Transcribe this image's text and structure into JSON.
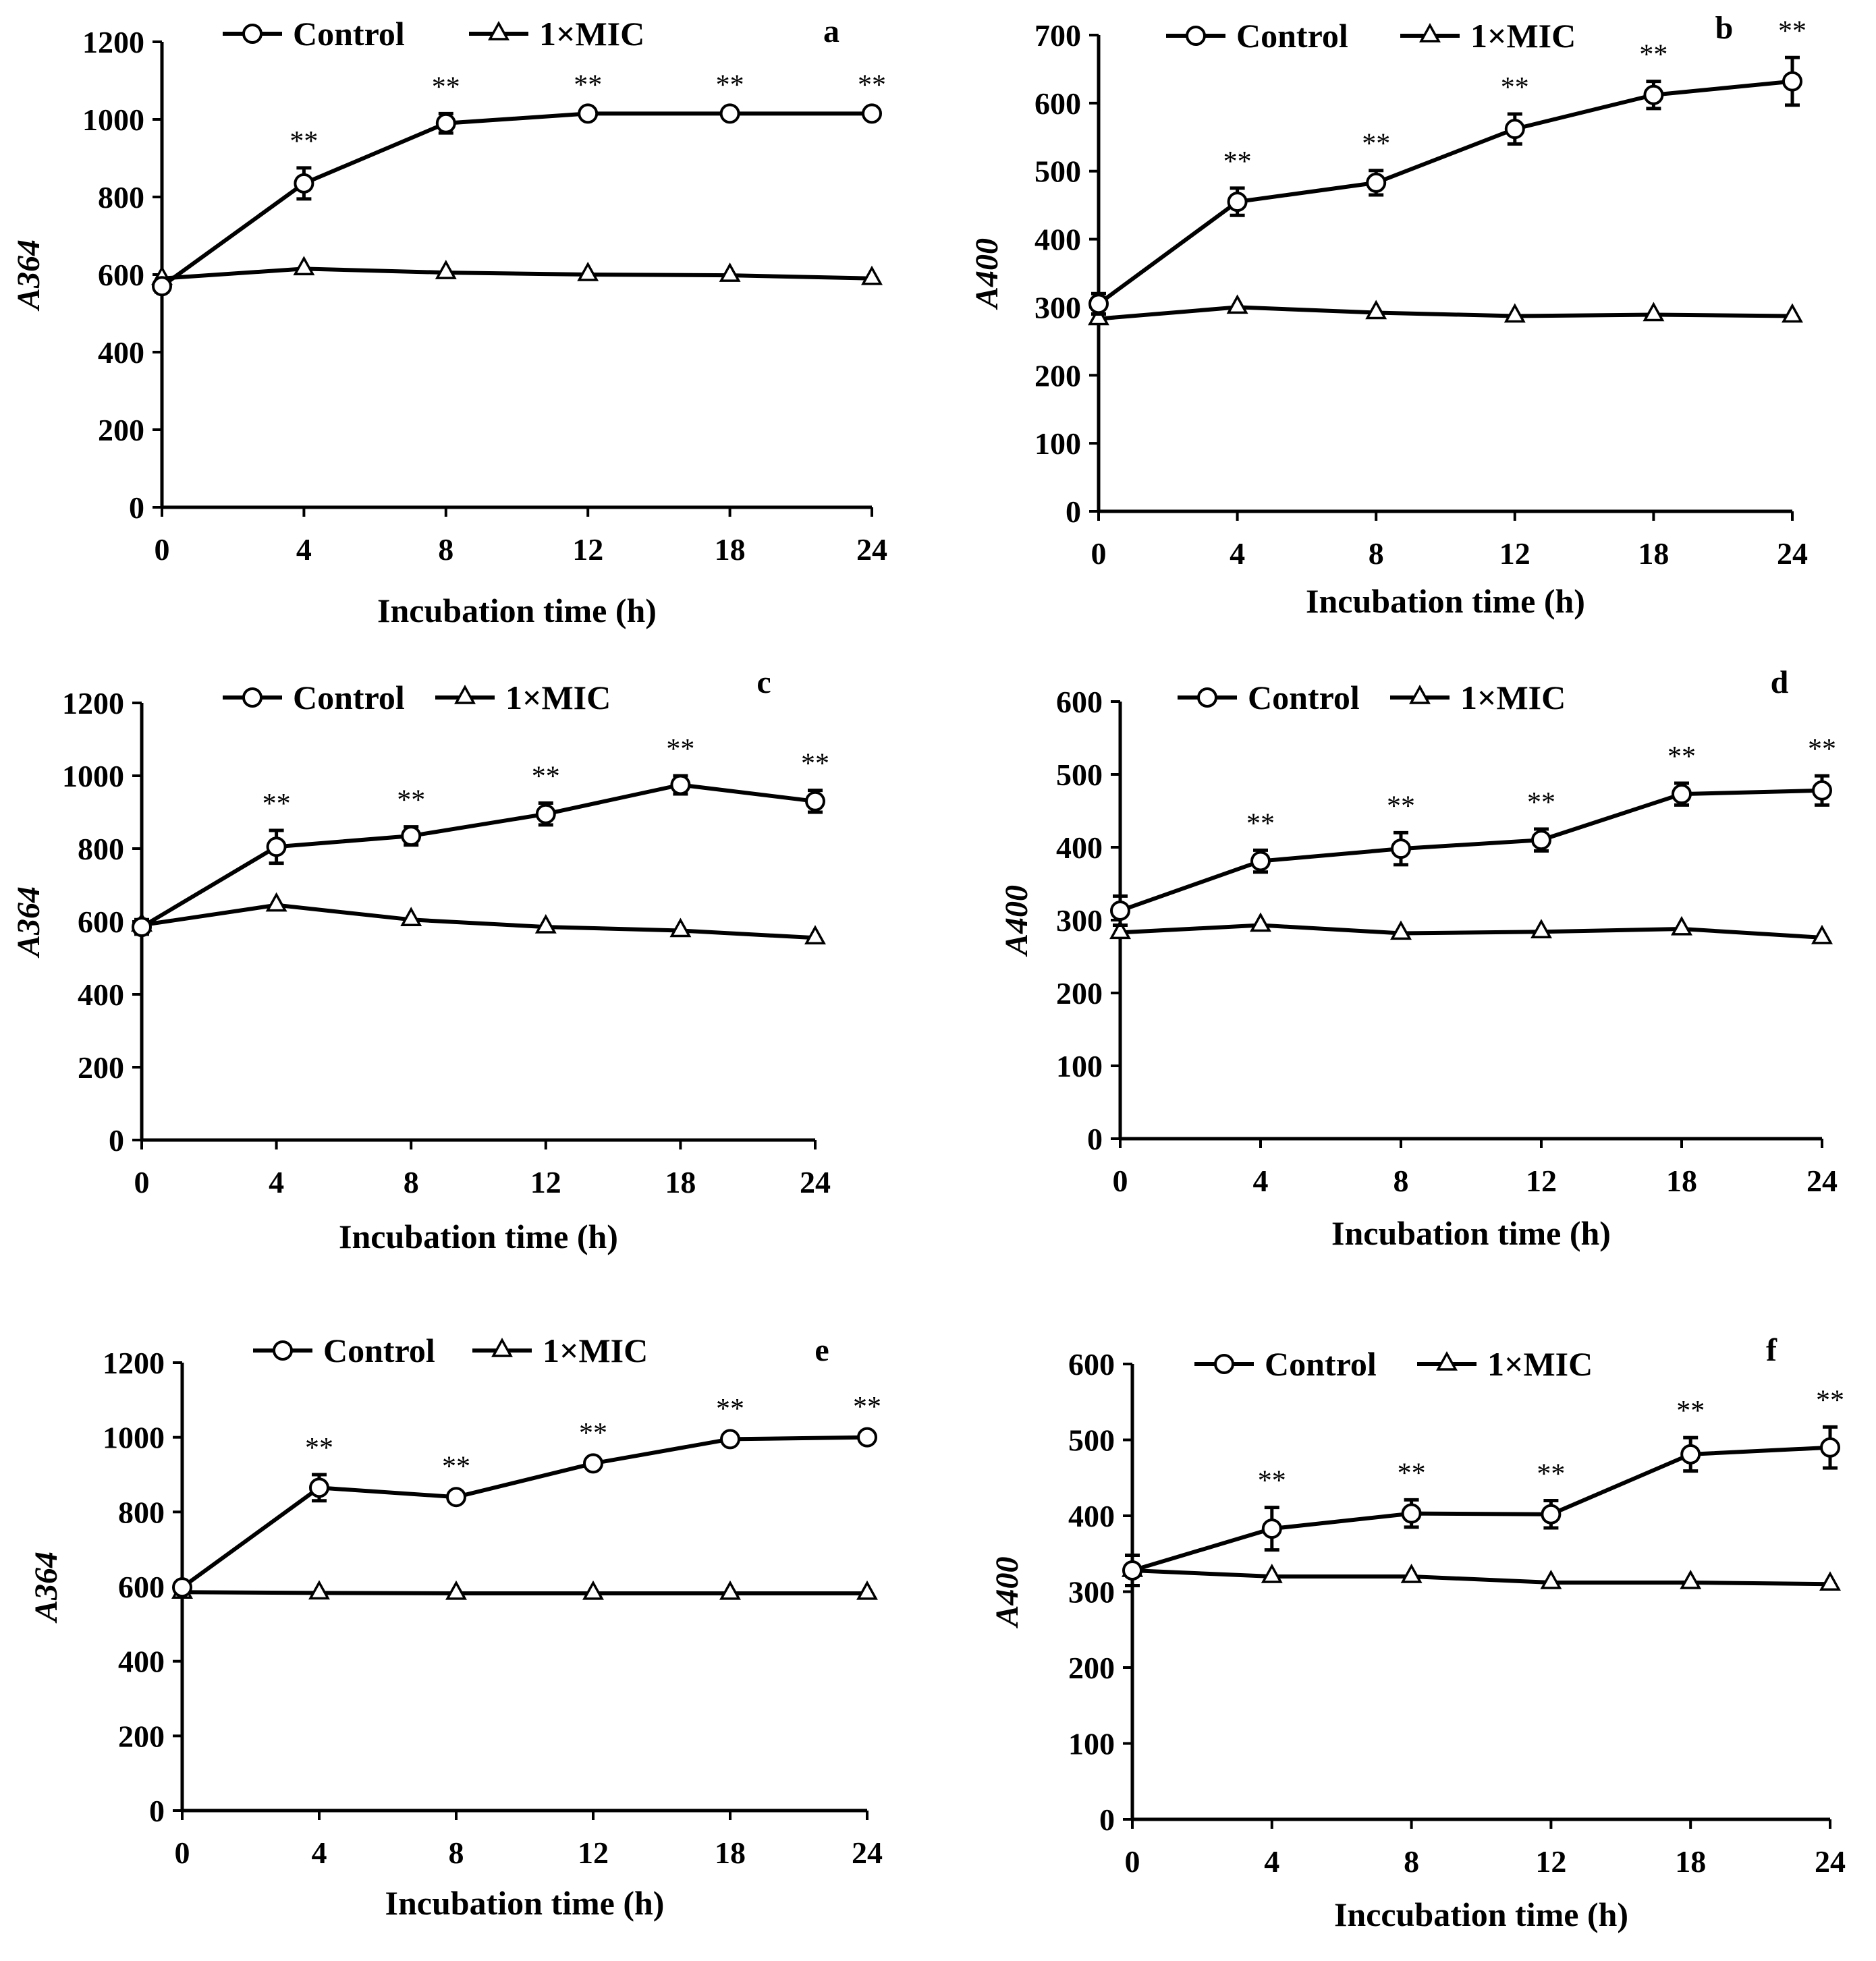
{
  "chart_data": [
    {
      "type": "line",
      "panel_label": "a",
      "categories": [
        "0",
        "4",
        "8",
        "12",
        "18",
        "24"
      ],
      "xlabel": "Incubation time (h)",
      "ylabel": "A364",
      "ylim": [
        0,
        1200
      ],
      "yticks": [
        0,
        200,
        400,
        600,
        800,
        1000,
        1200
      ],
      "series": [
        {
          "name": "Control",
          "marker": "circle",
          "values": [
            570,
            835,
            990,
            1015,
            1015,
            1015
          ],
          "errors": [
            15,
            40,
            25,
            5,
            5,
            5
          ],
          "significance": [
            "",
            "**",
            "**",
            "**",
            "**",
            "**"
          ]
        },
        {
          "name": "1×MIC",
          "marker": "triangle",
          "values": [
            590,
            615,
            605,
            600,
            598,
            590
          ],
          "errors": [
            0,
            0,
            0,
            0,
            0,
            0
          ]
        }
      ]
    },
    {
      "type": "line",
      "panel_label": "b",
      "categories": [
        "0",
        "4",
        "8",
        "12",
        "18",
        "24"
      ],
      "xlabel": "Incubation time (h)",
      "ylabel": "A400",
      "ylim": [
        0,
        700
      ],
      "yticks": [
        0,
        100,
        200,
        300,
        400,
        500,
        600,
        700
      ],
      "series": [
        {
          "name": "Control",
          "marker": "circle",
          "values": [
            305,
            455,
            483,
            562,
            612,
            632
          ],
          "errors": [
            15,
            20,
            18,
            22,
            20,
            35
          ],
          "significance": [
            "",
            "**",
            "**",
            "**",
            "**",
            "**"
          ]
        },
        {
          "name": "1×MIC",
          "marker": "triangle",
          "values": [
            283,
            300,
            292,
            287,
            289,
            287
          ],
          "errors": [
            0,
            0,
            0,
            0,
            0,
            0
          ]
        }
      ]
    },
    {
      "type": "line",
      "panel_label": "c",
      "categories": [
        "0",
        "4",
        "8",
        "12",
        "18",
        "24"
      ],
      "xlabel": "Incubation time (h)",
      "ylabel": "A364",
      "ylim": [
        0,
        1200
      ],
      "yticks": [
        0,
        200,
        400,
        600,
        800,
        1000,
        1200
      ],
      "series": [
        {
          "name": "Control",
          "marker": "circle",
          "values": [
            585,
            805,
            835,
            895,
            975,
            930
          ],
          "errors": [
            20,
            45,
            25,
            30,
            25,
            30
          ],
          "significance": [
            "",
            "**",
            "**",
            "**",
            "**",
            "**"
          ]
        },
        {
          "name": "1×MIC",
          "marker": "triangle",
          "values": [
            590,
            645,
            605,
            585,
            575,
            555
          ],
          "errors": [
            0,
            0,
            0,
            0,
            0,
            0
          ]
        }
      ]
    },
    {
      "type": "line",
      "panel_label": "d",
      "categories": [
        "0",
        "4",
        "8",
        "12",
        "18",
        "24"
      ],
      "xlabel": "Incubation time (h)",
      "ylabel": "A400",
      "ylim": [
        0,
        600
      ],
      "yticks": [
        0,
        100,
        200,
        300,
        400,
        500,
        600
      ],
      "series": [
        {
          "name": "Control",
          "marker": "circle",
          "values": [
            313,
            381,
            398,
            410,
            473,
            478
          ],
          "errors": [
            20,
            15,
            22,
            15,
            15,
            20
          ],
          "significance": [
            "",
            "**",
            "**",
            "**",
            "**",
            "**"
          ]
        },
        {
          "name": "1×MIC",
          "marker": "triangle",
          "values": [
            283,
            293,
            282,
            284,
            288,
            276
          ],
          "errors": [
            0,
            0,
            0,
            0,
            0,
            0
          ]
        }
      ]
    },
    {
      "type": "line",
      "panel_label": "e",
      "categories": [
        "0",
        "4",
        "8",
        "12",
        "18",
        "24"
      ],
      "xlabel": "Incubation time (h)",
      "ylabel": "A364",
      "ylim": [
        0,
        1200
      ],
      "yticks": [
        0,
        200,
        400,
        600,
        800,
        1000,
        1200
      ],
      "series": [
        {
          "name": "Control",
          "marker": "circle",
          "values": [
            598,
            865,
            840,
            930,
            995,
            1000
          ],
          "errors": [
            10,
            35,
            10,
            10,
            10,
            10
          ],
          "significance": [
            "",
            "**",
            "**",
            "**",
            "**",
            "**"
          ]
        },
        {
          "name": "1×MIC",
          "marker": "triangle",
          "values": [
            585,
            583,
            582,
            582,
            582,
            582
          ],
          "errors": [
            0,
            0,
            0,
            0,
            0,
            0
          ]
        }
      ]
    },
    {
      "type": "line",
      "panel_label": "f",
      "categories": [
        "0",
        "4",
        "8",
        "12",
        "18",
        "24"
      ],
      "xlabel": "Inccubation time (h)",
      "ylabel": "A400",
      "ylim": [
        0,
        600
      ],
      "yticks": [
        0,
        100,
        200,
        300,
        400,
        500,
        600
      ],
      "series": [
        {
          "name": "Control",
          "marker": "circle",
          "values": [
            328,
            383,
            403,
            402,
            481,
            490
          ],
          "errors": [
            20,
            28,
            18,
            18,
            22,
            27
          ],
          "significance": [
            "",
            "**",
            "**",
            "**",
            "**",
            "**"
          ]
        },
        {
          "name": "1×MIC",
          "marker": "triangle",
          "values": [
            328,
            320,
            320,
            312,
            312,
            310
          ],
          "errors": [
            0,
            0,
            0,
            0,
            0,
            0
          ]
        }
      ]
    }
  ]
}
